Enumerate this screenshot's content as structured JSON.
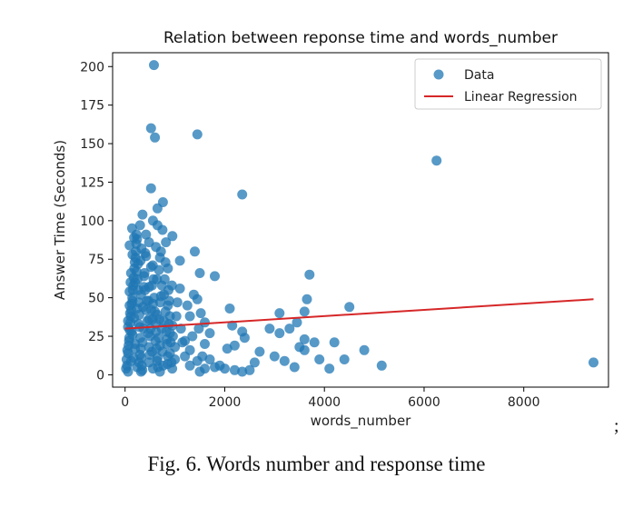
{
  "chart_data": {
    "type": "scatter",
    "title": "Relation between reponse time and words_number",
    "xlabel": "words_number",
    "ylabel": "Answer Time (Seconds)",
    "xlim": [
      -250,
      9700
    ],
    "ylim": [
      -8,
      209
    ],
    "x_ticks": [
      0,
      2000,
      4000,
      6000,
      8000
    ],
    "y_ticks": [
      0,
      25,
      50,
      75,
      100,
      125,
      150,
      175,
      200
    ],
    "legend_position": "top-right",
    "grid": false,
    "series": [
      {
        "name": "Data",
        "kind": "scatter",
        "color": "#1f77b4",
        "points": [
          [
            580,
            201
          ],
          [
            520,
            160
          ],
          [
            600,
            154
          ],
          [
            1450,
            156
          ],
          [
            6250,
            139
          ],
          [
            520,
            121
          ],
          [
            2350,
            117
          ],
          [
            760,
            112
          ],
          [
            650,
            108
          ],
          [
            350,
            104
          ],
          [
            140,
            95
          ],
          [
            560,
            100
          ],
          [
            650,
            97
          ],
          [
            300,
            97
          ],
          [
            750,
            94
          ],
          [
            230,
            91
          ],
          [
            950,
            90
          ],
          [
            180,
            89
          ],
          [
            480,
            86
          ],
          [
            820,
            86
          ],
          [
            90,
            84
          ],
          [
            330,
            82
          ],
          [
            620,
            83
          ],
          [
            1400,
            80
          ],
          [
            150,
            78
          ],
          [
            420,
            77
          ],
          [
            700,
            76
          ],
          [
            1100,
            74
          ],
          [
            260,
            72
          ],
          [
            520,
            70
          ],
          [
            860,
            69
          ],
          [
            120,
            66
          ],
          [
            1500,
            66
          ],
          [
            380,
            64
          ],
          [
            640,
            62
          ],
          [
            1800,
            64
          ],
          [
            3700,
            65
          ],
          [
            200,
            60
          ],
          [
            940,
            58
          ],
          [
            480,
            57
          ],
          [
            1100,
            56
          ],
          [
            90,
            54
          ],
          [
            320,
            52
          ],
          [
            720,
            51
          ],
          [
            1450,
            49
          ],
          [
            3650,
            49
          ],
          [
            150,
            48
          ],
          [
            560,
            46
          ],
          [
            860,
            45
          ],
          [
            1050,
            47
          ],
          [
            4500,
            44
          ],
          [
            240,
            43
          ],
          [
            420,
            42
          ],
          [
            2100,
            43
          ],
          [
            3600,
            41
          ],
          [
            100,
            40
          ],
          [
            640,
            39
          ],
          [
            1300,
            38
          ],
          [
            3100,
            40
          ],
          [
            180,
            37
          ],
          [
            480,
            36
          ],
          [
            780,
            35
          ],
          [
            1600,
            34
          ],
          [
            3450,
            34
          ],
          [
            270,
            33
          ],
          [
            950,
            32
          ],
          [
            1480,
            30
          ],
          [
            2150,
            32
          ],
          [
            2900,
            30
          ],
          [
            3300,
            30
          ],
          [
            3100,
            27
          ],
          [
            60,
            31
          ],
          [
            370,
            30
          ],
          [
            620,
            28
          ],
          [
            900,
            27
          ],
          [
            1350,
            25
          ],
          [
            2350,
            28
          ],
          [
            2400,
            24
          ],
          [
            3600,
            23
          ],
          [
            3800,
            21
          ],
          [
            4200,
            21
          ],
          [
            150,
            26
          ],
          [
            500,
            25
          ],
          [
            840,
            23
          ],
          [
            1150,
            21
          ],
          [
            1600,
            20
          ],
          [
            2200,
            19
          ],
          [
            3500,
            18
          ],
          [
            80,
            22
          ],
          [
            350,
            21
          ],
          [
            700,
            19
          ],
          [
            1000,
            18
          ],
          [
            1300,
            16
          ],
          [
            2700,
            15
          ],
          [
            3600,
            16
          ],
          [
            4800,
            16
          ],
          [
            200,
            17
          ],
          [
            540,
            15
          ],
          [
            900,
            14
          ],
          [
            1200,
            12
          ],
          [
            1550,
            12
          ],
          [
            1700,
            10
          ],
          [
            3900,
            10
          ],
          [
            4400,
            10
          ],
          [
            60,
            14
          ],
          [
            300,
            13
          ],
          [
            650,
            11
          ],
          [
            1000,
            10
          ],
          [
            1450,
            9
          ],
          [
            120,
            9
          ],
          [
            480,
            8
          ],
          [
            850,
            7
          ],
          [
            1300,
            6
          ],
          [
            1800,
            5
          ],
          [
            2000,
            4
          ],
          [
            2200,
            3
          ],
          [
            2500,
            3
          ],
          [
            4100,
            4
          ],
          [
            5150,
            6
          ],
          [
            9400,
            8
          ],
          [
            40,
            6
          ],
          [
            240,
            5
          ],
          [
            560,
            4
          ],
          [
            1600,
            4
          ],
          [
            2350,
            2
          ],
          [
            60,
            2
          ],
          [
            320,
            2
          ],
          [
            700,
            2
          ],
          [
            1500,
            2
          ],
          [
            110,
            60
          ],
          [
            90,
            45
          ],
          [
            60,
            35
          ],
          [
            130,
            28
          ],
          [
            200,
            20
          ],
          [
            170,
            11
          ],
          [
            280,
            8
          ],
          [
            230,
            67
          ],
          [
            310,
            74
          ],
          [
            400,
            55
          ],
          [
            470,
            48
          ],
          [
            550,
            36
          ],
          [
            610,
            22
          ],
          [
            680,
            68
          ],
          [
            740,
            58
          ],
          [
            810,
            41
          ],
          [
            880,
            33
          ],
          [
            960,
            25
          ],
          [
            1030,
            38
          ],
          [
            1120,
            30
          ],
          [
            1200,
            22
          ],
          [
            1250,
            45
          ],
          [
            1380,
            52
          ],
          [
            1520,
            40
          ],
          [
            1700,
            27
          ],
          [
            1900,
            6
          ],
          [
            2050,
            17
          ],
          [
            2600,
            8
          ],
          [
            3000,
            12
          ],
          [
            3200,
            9
          ],
          [
            3400,
            5
          ],
          [
            20,
            4
          ],
          [
            30,
            10
          ],
          [
            45,
            16
          ],
          [
            70,
            19
          ],
          [
            85,
            24
          ],
          [
            95,
            29
          ],
          [
            105,
            34
          ],
          [
            115,
            38
          ],
          [
            125,
            42
          ],
          [
            135,
            46
          ],
          [
            145,
            50
          ],
          [
            155,
            55
          ],
          [
            165,
            58
          ],
          [
            175,
            63
          ],
          [
            185,
            69
          ],
          [
            195,
            73
          ],
          [
            210,
            76
          ],
          [
            215,
            80
          ],
          [
            225,
            85
          ],
          [
            240,
            88
          ],
          [
            250,
            62
          ],
          [
            265,
            55
          ],
          [
            275,
            47
          ],
          [
            285,
            39
          ],
          [
            295,
            31
          ],
          [
            305,
            24
          ],
          [
            315,
            17
          ],
          [
            325,
            11
          ],
          [
            335,
            6
          ],
          [
            345,
            3
          ],
          [
            360,
            44
          ],
          [
            375,
            57
          ],
          [
            390,
            66
          ],
          [
            405,
            79
          ],
          [
            420,
            91
          ],
          [
            435,
            48
          ],
          [
            450,
            35
          ],
          [
            465,
            27
          ],
          [
            480,
            18
          ],
          [
            495,
            13
          ],
          [
            510,
            30
          ],
          [
            525,
            42
          ],
          [
            540,
            58
          ],
          [
            555,
            71
          ],
          [
            570,
            62
          ],
          [
            585,
            50
          ],
          [
            600,
            41
          ],
          [
            615,
            33
          ],
          [
            630,
            17
          ],
          [
            645,
            9
          ],
          [
            660,
            5
          ],
          [
            675,
            24
          ],
          [
            690,
            36
          ],
          [
            705,
            47
          ],
          [
            720,
            80
          ],
          [
            735,
            30
          ],
          [
            750,
            15
          ],
          [
            765,
            6
          ],
          [
            780,
            52
          ],
          [
            795,
            62
          ],
          [
            810,
            73
          ],
          [
            825,
            28
          ],
          [
            840,
            20
          ],
          [
            855,
            12
          ],
          [
            870,
            55
          ],
          [
            885,
            48
          ],
          [
            900,
            38
          ],
          [
            915,
            21
          ],
          [
            930,
            8
          ],
          [
            945,
            4
          ]
        ]
      },
      {
        "name": "Linear Regression",
        "kind": "line",
        "color": "#d62728",
        "points": [
          [
            0,
            30
          ],
          [
            9400,
            49
          ]
        ]
      }
    ]
  },
  "caption": "Fig. 6. Words number and response time",
  "trailing_mark": ";"
}
